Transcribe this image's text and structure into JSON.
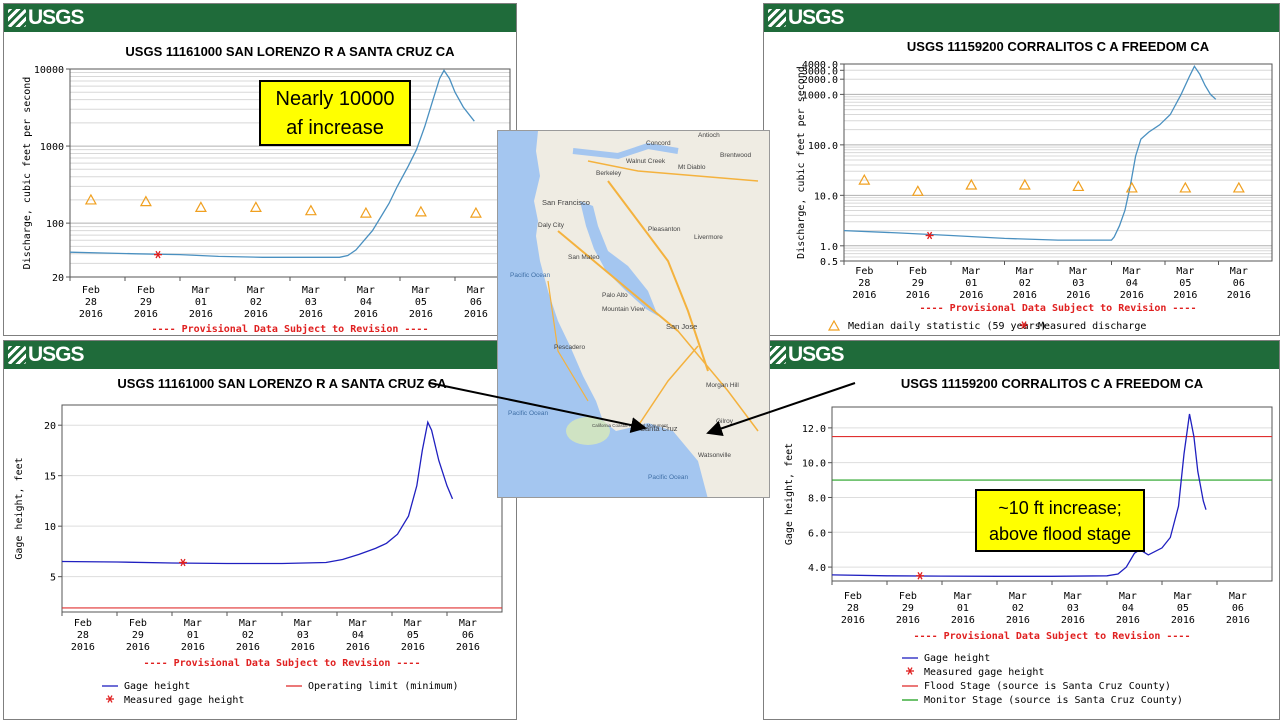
{
  "branding": {
    "logo_text": "USGS"
  },
  "chart_data": [
    {
      "id": "tl",
      "type": "line",
      "title": "USGS 11161000 SAN LORENZO R A SANTA CRUZ CA",
      "ylabel": "Discharge, cubic feet per second",
      "yscale": "log",
      "ylim": [
        20,
        10000
      ],
      "yticks": [
        {
          "v": 20,
          "label": "20"
        },
        {
          "v": 100,
          "label": "100"
        },
        {
          "v": 1000,
          "label": "1000"
        },
        {
          "v": 10000,
          "label": "10000"
        }
      ],
      "xlim": [
        0,
        8
      ],
      "xticks": [
        {
          "l1": "Feb",
          "l2": "28",
          "l3": "2016"
        },
        {
          "l1": "Feb",
          "l2": "29",
          "l3": "2016"
        },
        {
          "l1": "Mar",
          "l2": "01",
          "l3": "2016"
        },
        {
          "l1": "Mar",
          "l2": "02",
          "l3": "2016"
        },
        {
          "l1": "Mar",
          "l2": "03",
          "l3": "2016"
        },
        {
          "l1": "Mar",
          "l2": "04",
          "l3": "2016"
        },
        {
          "l1": "Mar",
          "l2": "05",
          "l3": "2016"
        },
        {
          "l1": "Mar",
          "l2": "06",
          "l3": "2016"
        }
      ],
      "series": [
        {
          "type": "line",
          "color": "#4a90c0",
          "points": [
            [
              0,
              42
            ],
            [
              0.6,
              41
            ],
            [
              1.2,
              40
            ],
            [
              2,
              39
            ],
            [
              2.7,
              37
            ],
            [
              3.5,
              36
            ],
            [
              4.3,
              36
            ],
            [
              4.9,
              36
            ],
            [
              5.05,
              38
            ],
            [
              5.2,
              45
            ],
            [
              5.35,
              60
            ],
            [
              5.5,
              80
            ],
            [
              5.65,
              120
            ],
            [
              5.8,
              180
            ],
            [
              5.95,
              300
            ],
            [
              6.15,
              550
            ],
            [
              6.3,
              900
            ],
            [
              6.45,
              1800
            ],
            [
              6.6,
              4000
            ],
            [
              6.72,
              7500
            ],
            [
              6.8,
              9600
            ],
            [
              6.9,
              7500
            ],
            [
              7.0,
              5000
            ],
            [
              7.15,
              3200
            ],
            [
              7.35,
              2100
            ]
          ]
        },
        {
          "type": "triangles",
          "color": "#f0a020",
          "points": [
            [
              0.38,
              200
            ],
            [
              1.38,
              190
            ],
            [
              2.38,
              160
            ],
            [
              3.38,
              160
            ],
            [
              4.38,
              145
            ],
            [
              5.38,
              135
            ],
            [
              6.38,
              140
            ],
            [
              7.38,
              135
            ]
          ]
        },
        {
          "type": "star",
          "color": "#e02020",
          "points": [
            [
              1.6,
              39
            ]
          ]
        }
      ],
      "footer": "---- Provisional Data Subject to Revision ----",
      "legend": []
    },
    {
      "id": "tr",
      "type": "line",
      "title": "USGS 11159200 CORRALITOS C A FREEDOM CA",
      "ylabel": "Discharge, cubic feet per second",
      "yscale": "log",
      "ylim": [
        0.5,
        4000
      ],
      "yticks": [
        {
          "v": 0.5,
          "label": "0.5"
        },
        {
          "v": 1,
          "label": "1.0"
        },
        {
          "v": 10,
          "label": "10.0"
        },
        {
          "v": 100,
          "label": "100.0"
        },
        {
          "v": 1000,
          "label": "1000.0"
        },
        {
          "v": 2000,
          "label": "2000.0"
        },
        {
          "v": 3000,
          "label": "3000.0"
        },
        {
          "v": 4000,
          "label": "4000.0"
        }
      ],
      "xlim": [
        0,
        8
      ],
      "xticks": [
        {
          "l1": "Feb",
          "l2": "28",
          "l3": "2016"
        },
        {
          "l1": "Feb",
          "l2": "29",
          "l3": "2016"
        },
        {
          "l1": "Mar",
          "l2": "01",
          "l3": "2016"
        },
        {
          "l1": "Mar",
          "l2": "02",
          "l3": "2016"
        },
        {
          "l1": "Mar",
          "l2": "03",
          "l3": "2016"
        },
        {
          "l1": "Mar",
          "l2": "04",
          "l3": "2016"
        },
        {
          "l1": "Mar",
          "l2": "05",
          "l3": "2016"
        },
        {
          "l1": "Mar",
          "l2": "06",
          "l3": "2016"
        }
      ],
      "series": [
        {
          "type": "line",
          "color": "#4a90c0",
          "points": [
            [
              0,
              2.0
            ],
            [
              1,
              1.8
            ],
            [
              2,
              1.6
            ],
            [
              3,
              1.4
            ],
            [
              4,
              1.3
            ],
            [
              5,
              1.3
            ],
            [
              5.05,
              1.5
            ],
            [
              5.15,
              2.5
            ],
            [
              5.25,
              5
            ],
            [
              5.35,
              15
            ],
            [
              5.45,
              60
            ],
            [
              5.55,
              130
            ],
            [
              5.7,
              180
            ],
            [
              5.9,
              250
            ],
            [
              6.1,
              400
            ],
            [
              6.3,
              1000
            ],
            [
              6.45,
              2200
            ],
            [
              6.55,
              3600
            ],
            [
              6.65,
              2500
            ],
            [
              6.75,
              1500
            ],
            [
              6.85,
              1000
            ],
            [
              6.95,
              800
            ]
          ]
        },
        {
          "type": "triangles",
          "color": "#f0a020",
          "points": [
            [
              0.38,
              20
            ],
            [
              1.38,
              12
            ],
            [
              2.38,
              16
            ],
            [
              3.38,
              16
            ],
            [
              4.38,
              15
            ],
            [
              5.38,
              14
            ],
            [
              6.38,
              14
            ],
            [
              7.38,
              14
            ]
          ]
        },
        {
          "type": "star",
          "color": "#e02020",
          "points": [
            [
              1.6,
              1.6
            ]
          ]
        }
      ],
      "footer": "---- Provisional Data Subject to Revision ----",
      "legend": [
        {
          "type": "triangle",
          "color": "#f0a020",
          "label": "Median daily statistic (59 years)"
        },
        {
          "type": "star",
          "color": "#e02020",
          "label": "Measured discharge"
        }
      ]
    },
    {
      "id": "bl",
      "type": "line",
      "title": "USGS 11161000 SAN LORENZO R A SANTA CRUZ CA",
      "ylabel": "Gage height, feet",
      "yscale": "linear",
      "ylim": [
        1.5,
        22
      ],
      "yticks": [
        {
          "v": 5,
          "label": "5"
        },
        {
          "v": 10,
          "label": "10"
        },
        {
          "v": 15,
          "label": "15"
        },
        {
          "v": 20,
          "label": "20"
        }
      ],
      "xlim": [
        0,
        8
      ],
      "xticks": [
        {
          "l1": "Feb",
          "l2": "28",
          "l3": "2016"
        },
        {
          "l1": "Feb",
          "l2": "29",
          "l3": "2016"
        },
        {
          "l1": "Mar",
          "l2": "01",
          "l3": "2016"
        },
        {
          "l1": "Mar",
          "l2": "02",
          "l3": "2016"
        },
        {
          "l1": "Mar",
          "l2": "03",
          "l3": "2016"
        },
        {
          "l1": "Mar",
          "l2": "04",
          "l3": "2016"
        },
        {
          "l1": "Mar",
          "l2": "05",
          "l3": "2016"
        },
        {
          "l1": "Mar",
          "l2": "06",
          "l3": "2016"
        }
      ],
      "series": [
        {
          "type": "hline",
          "color": "#e03030",
          "y": 1.9
        },
        {
          "type": "line",
          "color": "#2020c0",
          "points": [
            [
              0,
              6.5
            ],
            [
              1,
              6.45
            ],
            [
              2,
              6.35
            ],
            [
              3,
              6.3
            ],
            [
              4,
              6.3
            ],
            [
              4.8,
              6.4
            ],
            [
              5.1,
              6.7
            ],
            [
              5.4,
              7.2
            ],
            [
              5.7,
              7.8
            ],
            [
              5.9,
              8.3
            ],
            [
              6.1,
              9.2
            ],
            [
              6.3,
              11
            ],
            [
              6.45,
              14
            ],
            [
              6.55,
              17.5
            ],
            [
              6.65,
              20.3
            ],
            [
              6.72,
              19.5
            ],
            [
              6.85,
              16.5
            ],
            [
              7.0,
              14
            ],
            [
              7.1,
              12.7
            ]
          ]
        },
        {
          "type": "star",
          "color": "#e02020",
          "points": [
            [
              2.2,
              6.4
            ]
          ]
        }
      ],
      "footer": "---- Provisional Data Subject to Revision ----",
      "legend": [
        {
          "type": "line",
          "color": "#2020c0",
          "label": "Gage height"
        },
        {
          "type": "line",
          "color": "#e03030",
          "label": "Operating limit (minimum)"
        },
        {
          "type": "star",
          "color": "#e02020",
          "label": "Measured gage height"
        }
      ]
    },
    {
      "id": "br",
      "type": "line",
      "title": "USGS 11159200 CORRALITOS C A FREEDOM CA",
      "ylabel": "Gage height, feet",
      "yscale": "linear",
      "ylim": [
        3.2,
        13.2
      ],
      "yticks": [
        {
          "v": 4,
          "label": "4.0"
        },
        {
          "v": 6,
          "label": "6.0"
        },
        {
          "v": 8,
          "label": "8.0"
        },
        {
          "v": 10,
          "label": "10.0"
        },
        {
          "v": 12,
          "label": "12.0"
        }
      ],
      "xlim": [
        0,
        8
      ],
      "xticks": [
        {
          "l1": "Feb",
          "l2": "28",
          "l3": "2016"
        },
        {
          "l1": "Feb",
          "l2": "29",
          "l3": "2016"
        },
        {
          "l1": "Mar",
          "l2": "01",
          "l3": "2016"
        },
        {
          "l1": "Mar",
          "l2": "02",
          "l3": "2016"
        },
        {
          "l1": "Mar",
          "l2": "03",
          "l3": "2016"
        },
        {
          "l1": "Mar",
          "l2": "04",
          "l3": "2016"
        },
        {
          "l1": "Mar",
          "l2": "05",
          "l3": "2016"
        },
        {
          "l1": "Mar",
          "l2": "06",
          "l3": "2016"
        }
      ],
      "series": [
        {
          "type": "hline",
          "color": "#e03030",
          "y": 11.5
        },
        {
          "type": "hline",
          "color": "#20a020",
          "y": 9.0
        },
        {
          "type": "line",
          "color": "#2020c0",
          "points": [
            [
              0,
              3.55
            ],
            [
              1,
              3.5
            ],
            [
              2,
              3.48
            ],
            [
              3,
              3.47
            ],
            [
              4,
              3.47
            ],
            [
              5,
              3.5
            ],
            [
              5.2,
              3.6
            ],
            [
              5.35,
              4.0
            ],
            [
              5.5,
              4.8
            ],
            [
              5.6,
              5.0
            ],
            [
              5.75,
              4.7
            ],
            [
              6.0,
              5.1
            ],
            [
              6.15,
              5.7
            ],
            [
              6.3,
              7.5
            ],
            [
              6.4,
              10.5
            ],
            [
              6.5,
              12.8
            ],
            [
              6.58,
              11.5
            ],
            [
              6.65,
              9.5
            ],
            [
              6.75,
              7.8
            ],
            [
              6.8,
              7.3
            ]
          ]
        },
        {
          "type": "star",
          "color": "#e02020",
          "points": [
            [
              1.6,
              3.5
            ]
          ]
        }
      ],
      "footer": "---- Provisional Data Subject to Revision ----",
      "legend": [
        {
          "type": "line",
          "color": "#2020c0",
          "label": "Gage height"
        },
        {
          "type": "star",
          "color": "#e02020",
          "label": "Measured gage height"
        },
        {
          "type": "line",
          "color": "#e03030",
          "label": "Flood Stage (source is Santa Cruz County)"
        },
        {
          "type": "line",
          "color": "#20a020",
          "label": "Monitor Stage (source is Santa Cruz County)"
        }
      ]
    }
  ],
  "callouts": {
    "tl": {
      "line1": "Nearly 10000",
      "line2": "af increase"
    },
    "br": {
      "line1": "~10 ft increase;",
      "line2": "above flood stage"
    }
  },
  "map": {
    "labels": [
      "Antioch",
      "Concord",
      "Walnut Creek",
      "Brentwood",
      "Mt Diablo",
      "Berkeley",
      "San Francisco",
      "Daly City",
      "Pleasanton",
      "San Mateo",
      "Pacific Ocean",
      "Palo Alto",
      "Mountain View",
      "Livermore",
      "San Jose",
      "Pescadero",
      "Morgan Hill",
      "Gilroy",
      "Pacific Ocean",
      "California Coastal National Monument",
      "Santa Cruz",
      "Watsonville",
      "Pacific Ocean"
    ]
  }
}
